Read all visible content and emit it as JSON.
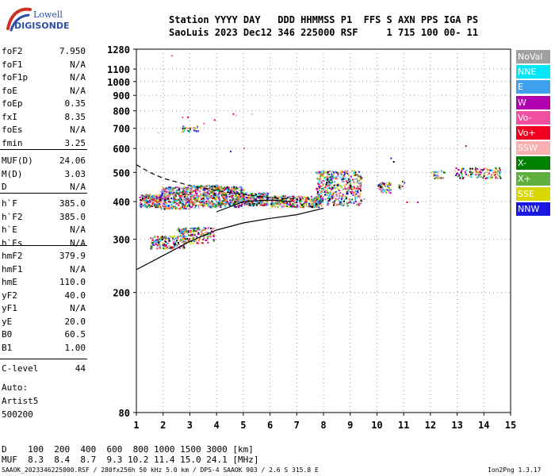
{
  "logo": {
    "brand_top": "Lowell",
    "brand_bottom": "DIGISONDE",
    "colors": {
      "blue": "#2b4fa6",
      "red": "#d03020"
    }
  },
  "header": {
    "line1": "Station YYYY DAY   DDD HHMMSS P1  FFS S AXN PPS IGA PS",
    "line2": "SaoLuis 2023 Dec12 346 225000 RSF     1 715 100 00- 11"
  },
  "params": [
    {
      "label": "foF2",
      "value": "7.950"
    },
    {
      "label": "foF1",
      "value": "N/A"
    },
    {
      "label": "foF1p",
      "value": "N/A"
    },
    {
      "label": "foE",
      "value": "N/A"
    },
    {
      "label": "foEp",
      "value": "0.35"
    },
    {
      "label": "fxI",
      "value": "8.35"
    },
    {
      "label": "foEs",
      "value": "N/A"
    },
    {
      "label": "fmin",
      "value": "3.25"
    },
    {
      "label": "MUF(D)",
      "value": "24.06"
    },
    {
      "label": "M(D)",
      "value": "3.03"
    },
    {
      "label": "D",
      "value": "N/A"
    },
    {
      "label": "h`F",
      "value": "385.0"
    },
    {
      "label": "h`F2",
      "value": "385.0"
    },
    {
      "label": "h`E",
      "value": "N/A"
    },
    {
      "label": "h`Es",
      "value": "N/A"
    },
    {
      "label": "hmF2",
      "value": "379.9"
    },
    {
      "label": "hmF1",
      "value": "N/A"
    },
    {
      "label": "hmE",
      "value": "110.0"
    },
    {
      "label": "yF2",
      "value": "40.0"
    },
    {
      "label": "yF1",
      "value": "N/A"
    },
    {
      "label": "yE",
      "value": "20.0"
    },
    {
      "label": "B0",
      "value": "60.5"
    },
    {
      "label": "B1",
      "value": "1.00"
    },
    {
      "label": "C-level",
      "value": "44"
    }
  ],
  "auto": [
    "Auto:",
    "Artist5",
    "500200"
  ],
  "legend": [
    {
      "label": "NoVal",
      "color": "#a0a0a0"
    },
    {
      "label": "NNE",
      "color": "#00e8f8"
    },
    {
      "label": "E",
      "color": "#40a0f0"
    },
    {
      "label": "W",
      "color": "#b000b0"
    },
    {
      "label": "Vo-",
      "color": "#f050a0"
    },
    {
      "label": "Vo+",
      "color": "#f00020"
    },
    {
      "label": "SSW",
      "color": "#f8b0b0"
    },
    {
      "label": "X-",
      "color": "#008000"
    },
    {
      "label": "X+",
      "color": "#60b040"
    },
    {
      "label": "SSE",
      "color": "#d8d800"
    },
    {
      "label": "NNW",
      "color": "#1818e0"
    }
  ],
  "muf_table": {
    "line1": "D    100  200  400  600  800 1000 1500 3000 [km]",
    "line2": "MUF  8.3  8.4  8.7  9.3 10.2 11.4 15.0 24.1 [MHz]"
  },
  "footer": {
    "left": "SAAOK_2023346225000.RSF / 280fx256h 50 kHz 5.0 km / DPS-4 SAAOK 903 / 2.6 S 315.8 E",
    "right": "Ion2Png 1.3.17"
  },
  "chart_data": {
    "type": "scatter",
    "xlim": [
      1,
      15
    ],
    "ylim": [
      80,
      1280
    ],
    "xticks": [
      "1",
      "2",
      "3",
      "4",
      "5",
      "6",
      "7",
      "8",
      "9",
      "10",
      "11",
      "12",
      "13",
      "14",
      "15"
    ],
    "yticks": [
      "80",
      "200",
      "300",
      "400",
      "500",
      "600",
      "700",
      "800",
      "900",
      "1000",
      "1100",
      "1280"
    ],
    "ytick_values": [
      80,
      200,
      300,
      400,
      500,
      600,
      700,
      800,
      900,
      1000,
      1100,
      1280
    ],
    "y_scale": "log",
    "grid": true,
    "trace_clusters": [
      {
        "x": [
          1.1,
          1.9
        ],
        "y": [
          385,
          425
        ],
        "n": 220
      },
      {
        "x": [
          1.9,
          3.1
        ],
        "y": [
          380,
          450
        ],
        "n": 380
      },
      {
        "x": [
          3.1,
          4.2
        ],
        "y": [
          385,
          455
        ],
        "n": 360
      },
      {
        "x": [
          4.2,
          5.0
        ],
        "y": [
          385,
          450
        ],
        "n": 260
      },
      {
        "x": [
          5.0,
          5.9
        ],
        "y": [
          390,
          430
        ],
        "n": 220
      },
      {
        "x": [
          6.0,
          7.9
        ],
        "y": [
          385,
          420
        ],
        "n": 300
      },
      {
        "x": [
          7.7,
          9.4
        ],
        "y": [
          390,
          510
        ],
        "n": 460
      },
      {
        "x": [
          1.5,
          2.8
        ],
        "y": [
          280,
          310
        ],
        "n": 160
      },
      {
        "x": [
          2.5,
          3.9
        ],
        "y": [
          292,
          330
        ],
        "n": 170
      },
      {
        "x": [
          10.0,
          10.5
        ],
        "y": [
          430,
          465
        ],
        "n": 60
      },
      {
        "x": [
          10.8,
          11.0
        ],
        "y": [
          440,
          470
        ],
        "n": 12
      },
      {
        "x": [
          12.0,
          12.5
        ],
        "y": [
          480,
          510
        ],
        "n": 25
      },
      {
        "x": [
          12.9,
          14.6
        ],
        "y": [
          480,
          520
        ],
        "n": 120
      },
      {
        "x": [
          2.7,
          3.3
        ],
        "y": [
          685,
          715
        ],
        "n": 30
      }
    ],
    "scattered_points": [
      {
        "x": 2.3,
        "y": 1225
      },
      {
        "x": 1.8,
        "y": 680
      },
      {
        "x": 2.7,
        "y": 765
      },
      {
        "x": 2.9,
        "y": 765
      },
      {
        "x": 3.5,
        "y": 730
      },
      {
        "x": 3.9,
        "y": 750
      },
      {
        "x": 4.6,
        "y": 785
      },
      {
        "x": 4.7,
        "y": 775
      },
      {
        "x": 5.3,
        "y": 785
      },
      {
        "x": 5.0,
        "y": 605
      },
      {
        "x": 4.5,
        "y": 590
      },
      {
        "x": 13.3,
        "y": 615
      },
      {
        "x": 10.5,
        "y": 560
      },
      {
        "x": 10.6,
        "y": 545
      },
      {
        "x": 11.1,
        "y": 400
      },
      {
        "x": 11.5,
        "y": 400
      },
      {
        "x": 9.5,
        "y": 410
      }
    ],
    "profile_lines": [
      {
        "style": "solid",
        "points": [
          [
            1,
            238
          ],
          [
            2,
            265
          ],
          [
            3,
            295
          ],
          [
            4,
            322
          ],
          [
            5,
            340
          ],
          [
            6,
            352
          ],
          [
            7,
            362
          ],
          [
            8,
            380
          ]
        ]
      },
      {
        "style": "solid",
        "points": [
          [
            4,
            370
          ],
          [
            5,
            400
          ],
          [
            6,
            405
          ],
          [
            6.8,
            400
          ]
        ]
      },
      {
        "style": "dashed",
        "points": [
          [
            1,
            530
          ],
          [
            1.5,
            500
          ],
          [
            2,
            478
          ],
          [
            3,
            452
          ],
          [
            4,
            435
          ],
          [
            5,
            423
          ],
          [
            6,
            412
          ],
          [
            7,
            408
          ]
        ]
      }
    ]
  }
}
